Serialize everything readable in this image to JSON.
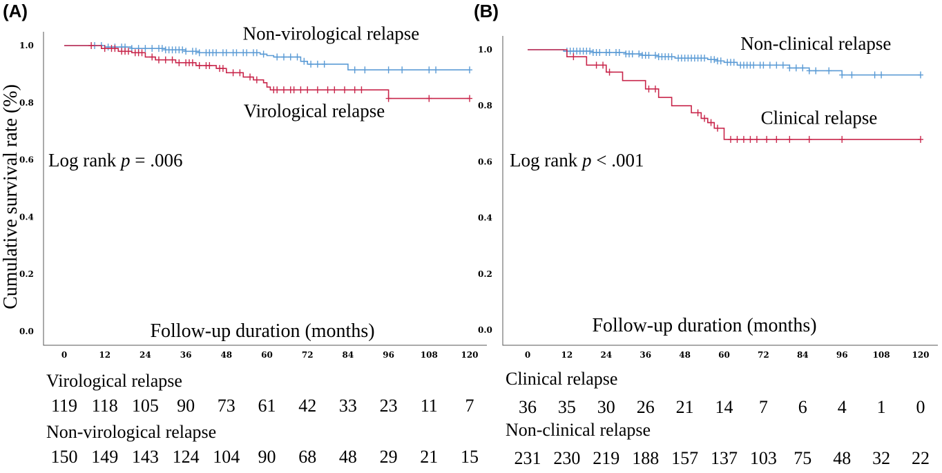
{
  "y_axis_title": "Cumulative survival rate (%)",
  "colors": {
    "upper_curve": "#5b9bd5",
    "lower_curve": "#c8254a",
    "axis": "#555555"
  },
  "chart_data": [
    {
      "type": "line",
      "panel_label": "(A)",
      "xlabel": "Follow-up duration (months)",
      "ylabel": "Cumulative survival rate (%)",
      "xlim": [
        0,
        120
      ],
      "ylim": [
        0,
        1.0
      ],
      "x_ticks": [
        "0",
        "12",
        "24",
        "36",
        "48",
        "60",
        "72",
        "84",
        "96",
        "108",
        "120"
      ],
      "y_ticks": [
        "0.0",
        "0.2",
        "0.4",
        "0.6",
        "0.8",
        "1.0"
      ],
      "annotation": {
        "prefix": "Log rank ",
        "p": "p",
        "suffix": " = .006"
      },
      "series": [
        {
          "name": "Non-virological relapse",
          "color": "#5b9bd5",
          "steps": [
            [
              0,
              1.0
            ],
            [
              12,
              0.995
            ],
            [
              20,
              0.99
            ],
            [
              30,
              0.985
            ],
            [
              36,
              0.98
            ],
            [
              40,
              0.975
            ],
            [
              58,
              0.97
            ],
            [
              60,
              0.965
            ],
            [
              62,
              0.96
            ],
            [
              70,
              0.945
            ],
            [
              72,
              0.935
            ],
            [
              84,
              0.915
            ],
            [
              120,
              0.915
            ]
          ],
          "censor": [
            9,
            11,
            13,
            15,
            17,
            18,
            20,
            22,
            24,
            26,
            28,
            29,
            30,
            31,
            32,
            33,
            34,
            35,
            36,
            38,
            39,
            40,
            42,
            43,
            44,
            45,
            47,
            48,
            50,
            51,
            53,
            54,
            56,
            57,
            59,
            63,
            65,
            67,
            69,
            71,
            73,
            75,
            77,
            86,
            89,
            96,
            100,
            108,
            110,
            120
          ]
        },
        {
          "name": "Virological relapse",
          "color": "#c8254a",
          "steps": [
            [
              0,
              1.0
            ],
            [
              11,
              0.99
            ],
            [
              16,
              0.98
            ],
            [
              20,
              0.975
            ],
            [
              24,
              0.96
            ],
            [
              27,
              0.95
            ],
            [
              33,
              0.94
            ],
            [
              39,
              0.93
            ],
            [
              45,
              0.92
            ],
            [
              48,
              0.905
            ],
            [
              53,
              0.89
            ],
            [
              56,
              0.88
            ],
            [
              59,
              0.87
            ],
            [
              60,
              0.855
            ],
            [
              61,
              0.845
            ],
            [
              96,
              0.815
            ],
            [
              120,
              0.815
            ]
          ],
          "censor": [
            8,
            12,
            14,
            15,
            17,
            18,
            19,
            21,
            22,
            23,
            26,
            28,
            30,
            32,
            34,
            36,
            37,
            38,
            40,
            42,
            43,
            46,
            47,
            50,
            52,
            55,
            57,
            62,
            63,
            65,
            67,
            68,
            70,
            72,
            75,
            78,
            80,
            83,
            86,
            88,
            96,
            108,
            120
          ]
        }
      ],
      "curve_labels": [
        {
          "text": "Non-virological relapse",
          "x": 79,
          "y": 1.02
        },
        {
          "text": "Virological relapse",
          "x": 74,
          "y": 0.75
        }
      ],
      "risk_table": [
        {
          "label": "Virological relapse",
          "values": [
            "119",
            "118",
            "105",
            "90",
            "73",
            "61",
            "42",
            "33",
            "23",
            "11",
            "7"
          ]
        },
        {
          "label": "Non-virological relapse",
          "values": [
            "150",
            "149",
            "143",
            "124",
            "104",
            "90",
            "68",
            "48",
            "29",
            "21",
            "15"
          ]
        }
      ]
    },
    {
      "type": "line",
      "panel_label": "(B)",
      "xlabel": "Follow-up duration (months)",
      "ylabel": "",
      "xlim": [
        0,
        120
      ],
      "ylim": [
        0,
        1.0
      ],
      "x_ticks": [
        "0",
        "12",
        "24",
        "36",
        "48",
        "60",
        "72",
        "84",
        "96",
        "108",
        "120"
      ],
      "y_ticks": [
        "0.0",
        "0.2",
        "0.4",
        "0.6",
        "0.8",
        "1.0"
      ],
      "annotation": {
        "prefix": "Log rank ",
        "p": "p",
        "suffix": " < .001"
      },
      "series": [
        {
          "name": "Non-clinical relapse",
          "color": "#5b9bd5",
          "steps": [
            [
              0,
              1.0
            ],
            [
              11,
              0.995
            ],
            [
              20,
              0.99
            ],
            [
              30,
              0.985
            ],
            [
              35,
              0.98
            ],
            [
              40,
              0.975
            ],
            [
              45,
              0.97
            ],
            [
              55,
              0.965
            ],
            [
              58,
              0.96
            ],
            [
              60,
              0.955
            ],
            [
              64,
              0.945
            ],
            [
              80,
              0.935
            ],
            [
              86,
              0.925
            ],
            [
              96,
              0.91
            ],
            [
              120,
              0.91
            ]
          ],
          "censor": [
            12,
            13,
            14,
            15,
            16,
            17,
            18,
            19,
            20,
            21,
            22,
            24,
            25,
            27,
            28,
            30,
            31,
            32,
            34,
            35,
            36,
            37,
            39,
            40,
            41,
            42,
            43,
            44,
            46,
            47,
            48,
            49,
            50,
            51,
            52,
            53,
            54,
            56,
            57,
            58,
            59,
            61,
            62,
            63,
            65,
            66,
            67,
            68,
            69,
            71,
            72,
            74,
            76,
            78,
            80,
            82,
            84,
            86,
            88,
            92,
            96,
            99,
            106,
            108,
            120
          ]
        },
        {
          "name": "Clinical relapse",
          "color": "#c8254a",
          "steps": [
            [
              0,
              1.0
            ],
            [
              12,
              0.975
            ],
            [
              18,
              0.945
            ],
            [
              24,
              0.92
            ],
            [
              29,
              0.89
            ],
            [
              36,
              0.86
            ],
            [
              40,
              0.83
            ],
            [
              44,
              0.8
            ],
            [
              50,
              0.775
            ],
            [
              53,
              0.755
            ],
            [
              55,
              0.74
            ],
            [
              57,
              0.72
            ],
            [
              60,
              0.68
            ],
            [
              120,
              0.68
            ]
          ],
          "censor": [
            14,
            21,
            23,
            25,
            37,
            39,
            52,
            54,
            56,
            58,
            62,
            64,
            66,
            68,
            70,
            73,
            76,
            80,
            86,
            96,
            120
          ]
        }
      ],
      "curve_labels": [
        {
          "text": "Non-clinical relapse",
          "x": 88,
          "y": 1.0
        },
        {
          "text": "Clinical relapse",
          "x": 89,
          "y": 0.735
        }
      ],
      "risk_table": [
        {
          "label": "Clinical relapse",
          "values": [
            "36",
            "35",
            "30",
            "26",
            "21",
            "14",
            "7",
            "6",
            "4",
            "1",
            "0"
          ]
        },
        {
          "label": "Non-clinical relapse",
          "values": [
            "231",
            "230",
            "219",
            "188",
            "157",
            "137",
            "103",
            "75",
            "48",
            "32",
            "22"
          ]
        }
      ]
    }
  ]
}
